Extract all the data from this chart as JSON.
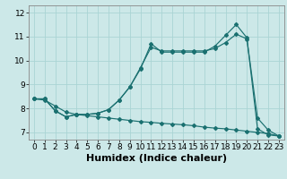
{
  "xlabel": "Humidex (Indice chaleur)",
  "bg_color": "#cce8e8",
  "line_color": "#1a7070",
  "grid_color": "#aad4d4",
  "xlim": [
    -0.5,
    23.5
  ],
  "ylim": [
    6.7,
    12.3
  ],
  "xticks": [
    0,
    1,
    2,
    3,
    4,
    5,
    6,
    7,
    8,
    9,
    10,
    11,
    12,
    13,
    14,
    15,
    16,
    17,
    18,
    19,
    20,
    21,
    22,
    23
  ],
  "yticks": [
    7,
    8,
    9,
    10,
    11,
    12
  ],
  "line1_x": [
    0,
    1,
    2,
    3,
    4,
    5,
    6,
    7,
    8,
    9,
    10,
    11,
    12,
    13,
    14,
    15,
    16,
    17,
    18,
    19,
    20,
    21,
    22,
    23
  ],
  "line1_y": [
    8.4,
    8.4,
    7.9,
    7.65,
    7.75,
    7.75,
    7.8,
    7.95,
    8.35,
    8.9,
    9.7,
    10.55,
    10.4,
    10.4,
    10.4,
    10.4,
    10.4,
    10.5,
    10.75,
    11.1,
    10.9,
    7.6,
    7.1,
    6.85
  ],
  "line2_x": [
    0,
    1,
    2,
    3,
    4,
    5,
    6,
    7,
    8,
    9,
    10,
    11,
    12,
    13,
    14,
    15,
    16,
    17,
    18,
    19,
    20,
    21,
    22,
    23
  ],
  "line2_y": [
    8.4,
    8.4,
    7.9,
    7.65,
    7.75,
    7.75,
    7.8,
    7.95,
    8.35,
    8.9,
    9.65,
    10.7,
    10.35,
    10.35,
    10.35,
    10.35,
    10.35,
    10.6,
    11.05,
    11.5,
    10.95,
    7.15,
    6.9,
    6.85
  ],
  "line3_x": [
    0,
    1,
    2,
    3,
    4,
    5,
    6,
    7,
    8,
    9,
    10,
    11,
    12,
    13,
    14,
    15,
    16,
    17,
    18,
    19,
    20,
    21,
    22,
    23
  ],
  "line3_y": [
    8.4,
    8.35,
    8.1,
    7.85,
    7.75,
    7.7,
    7.65,
    7.6,
    7.55,
    7.5,
    7.45,
    7.42,
    7.38,
    7.35,
    7.32,
    7.28,
    7.22,
    7.18,
    7.15,
    7.1,
    7.05,
    7.0,
    6.95,
    6.85
  ],
  "xlabel_fontsize": 8,
  "tick_fontsize": 6.5
}
